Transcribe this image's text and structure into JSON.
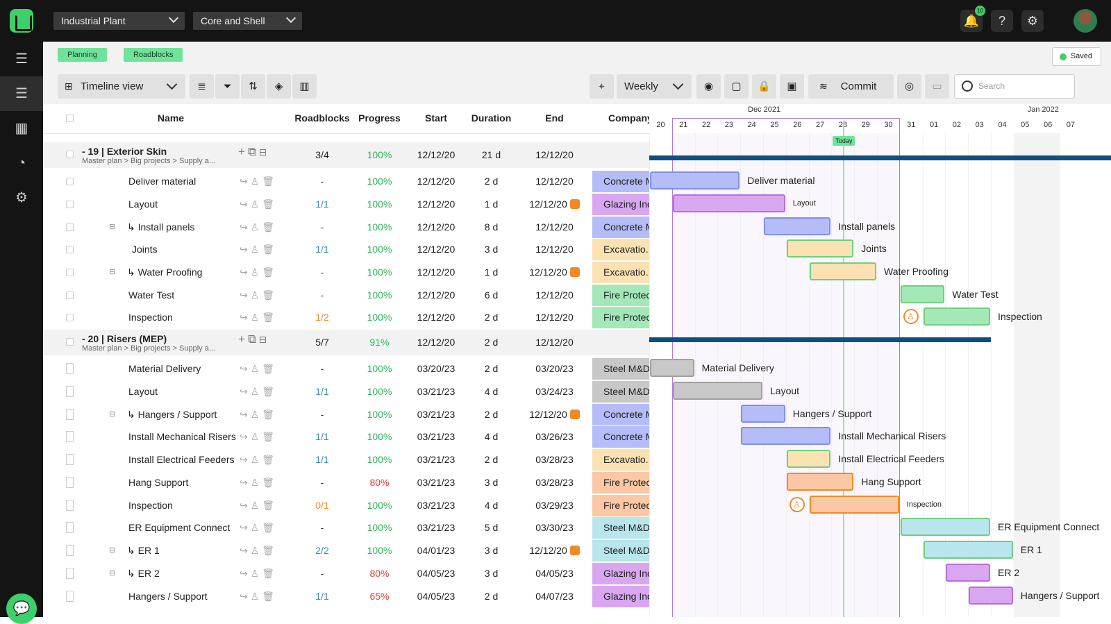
{
  "topbar": {
    "project": "Industrial Plant",
    "scope": "Core and Shell",
    "notif_count": "10"
  },
  "tabs": [
    "Planning",
    "Roadblocks"
  ],
  "saved": "Saved",
  "toolbar": {
    "view": "Timeline view",
    "scale": "Weekly",
    "commit": "Commit",
    "search_placeholder": "Search"
  },
  "columns": {
    "name": "Name",
    "roadblocks": "Roadblocks",
    "progress": "Progress",
    "start": "Start",
    "duration": "Duration",
    "end": "End",
    "company": "Company"
  },
  "colors": {
    "blue": "#b4bdf7",
    "purple": "#d9a7ef",
    "yellow": "#fbe2b2",
    "green": "#a4e8b8",
    "grey": "#c8c8c8",
    "orange": "#fbc7a5",
    "teal": "#b8e6ec",
    "accent": "#3ecf6a",
    "group_bar": "#0e4f7e"
  },
  "groups": [
    {
      "title": "- 19 | Exterior Skin",
      "path": "Master plan  >  Big projects  >  Supply a...",
      "roadblocks": "3/4",
      "progress": "100%",
      "start": "12/12/20",
      "duration": "21 d",
      "end": "12/12/20",
      "rows": [
        {
          "name": "Deliver material",
          "indent": 0,
          "rb": "-",
          "rbc": "#333",
          "prog": "100%",
          "pc": "#2eb85c",
          "start": "12/12/20",
          "dur": "2 d",
          "end": "12/12/20",
          "flag": false,
          "company": "Concrete M",
          "cc": "blue"
        },
        {
          "name": "Layout",
          "indent": 0,
          "rb": "1/1",
          "rbc": "#3a8fb7",
          "prog": "100%",
          "pc": "#2eb85c",
          "start": "12/12/20",
          "dur": "1 d",
          "end": "12/12/20",
          "flag": true,
          "company": "Glazing Inc",
          "cc": "purple"
        },
        {
          "name": "↳ Install panels",
          "indent": 1,
          "rb": "-",
          "rbc": "#333",
          "prog": "100%",
          "pc": "#2eb85c",
          "start": "12/12/20",
          "dur": "8 d",
          "end": "12/12/20",
          "flag": false,
          "company": "Concrete M",
          "cc": "blue"
        },
        {
          "name": "Joints",
          "indent": 2,
          "rb": "1/1",
          "rbc": "#3a8fb7",
          "prog": "100%",
          "pc": "#2eb85c",
          "start": "12/12/20",
          "dur": "3 d",
          "end": "12/12/20",
          "flag": false,
          "company": "Excavatio...",
          "cc": "yellow"
        },
        {
          "name": "↳ Water Proofing",
          "indent": 1,
          "rb": "-",
          "rbc": "#333",
          "prog": "100%",
          "pc": "#2eb85c",
          "start": "12/12/20",
          "dur": "1 d",
          "end": "12/12/20",
          "flag": true,
          "company": "Excavatio...",
          "cc": "yellow"
        },
        {
          "name": "Water Test",
          "indent": 0,
          "rb": "-",
          "rbc": "#333",
          "prog": "100%",
          "pc": "#2eb85c",
          "start": "12/12/20",
          "dur": "6 d",
          "end": "12/12/20",
          "flag": false,
          "company": "Fire Protect",
          "cc": "green"
        },
        {
          "name": "Inspection",
          "indent": 0,
          "rb": "1/2",
          "rbc": "#f08a24",
          "prog": "100%",
          "pc": "#2eb85c",
          "start": "12/12/20",
          "dur": "2 d",
          "end": "12/12/20",
          "flag": false,
          "company": "Fire Protect",
          "cc": "green"
        }
      ]
    },
    {
      "title": "- 20 | Risers (MEP)",
      "path": "Master plan  >  Big projects  >  Supply a...",
      "roadblocks": "5/7",
      "progress": "91%",
      "start": "12/12/20",
      "duration": "2 d",
      "end": "12/12/20",
      "rows": [
        {
          "name": "Material Delivery",
          "indent": 0,
          "rb": "-",
          "rbc": "#333",
          "prog": "100%",
          "pc": "#2eb85c",
          "start": "03/20/23",
          "dur": "2 d",
          "end": "03/20/23",
          "flag": false,
          "company": "Steel M&D",
          "cc": "grey"
        },
        {
          "name": "Layout",
          "indent": 0,
          "rb": "1/1",
          "rbc": "#3a8fb7",
          "prog": "100%",
          "pc": "#2eb85c",
          "start": "03/21/23",
          "dur": "4 d",
          "end": "03/24/23",
          "flag": false,
          "company": "Steel M&D",
          "cc": "grey"
        },
        {
          "name": "↳ Hangers / Support",
          "indent": 1,
          "rb": "-",
          "rbc": "#333",
          "prog": "100%",
          "pc": "#2eb85c",
          "start": "03/21/23",
          "dur": "2 d",
          "end": "12/12/20",
          "flag": true,
          "company": "Concrete M",
          "cc": "blue"
        },
        {
          "name": "Install Mechanical Risers",
          "indent": 0,
          "rb": "1/1",
          "rbc": "#3a8fb7",
          "prog": "100%",
          "pc": "#2eb85c",
          "start": "03/21/23",
          "dur": "4 d",
          "end": "03/26/23",
          "flag": false,
          "company": "Concrete M",
          "cc": "blue"
        },
        {
          "name": "Install Electrical Feeders",
          "indent": 0,
          "rb": "1/1",
          "rbc": "#3a8fb7",
          "prog": "100%",
          "pc": "#2eb85c",
          "start": "03/21/23",
          "dur": "2 d",
          "end": "03/28/23",
          "flag": false,
          "company": "Excavatio...",
          "cc": "yellow"
        },
        {
          "name": "Hang Support",
          "indent": 0,
          "rb": "-",
          "rbc": "#333",
          "prog": "80%",
          "pc": "#e8362f",
          "start": "03/21/23",
          "dur": "3 d",
          "end": "03/28/23",
          "flag": false,
          "company": "Fire Protect",
          "cc": "orange"
        },
        {
          "name": "Inspection",
          "indent": 0,
          "rb": "0/1",
          "rbc": "#f08a24",
          "prog": "100%",
          "pc": "#2eb85c",
          "start": "03/21/23",
          "dur": "4 d",
          "end": "03/29/23",
          "flag": false,
          "company": "Fire Protect",
          "cc": "orange"
        },
        {
          "name": "ER Equipment Connect",
          "indent": 0,
          "rb": "-",
          "rbc": "#333",
          "prog": "100%",
          "pc": "#2eb85c",
          "start": "03/21/23",
          "dur": "5 d",
          "end": "03/30/23",
          "flag": false,
          "company": "Steel M&D",
          "cc": "teal"
        },
        {
          "name": "↳ ER 1",
          "indent": 1,
          "rb": "2/2",
          "rbc": "#3a8fb7",
          "prog": "100%",
          "pc": "#2eb85c",
          "start": "04/01/23",
          "dur": "3 d",
          "end": "12/12/20",
          "flag": true,
          "company": "Steel M&D",
          "cc": "teal"
        },
        {
          "name": "↳ ER 2",
          "indent": 1,
          "rb": "-",
          "rbc": "#333",
          "prog": "80%",
          "pc": "#e8362f",
          "start": "04/05/23",
          "dur": "3 d",
          "end": "04/05/23",
          "flag": false,
          "company": "Glazing Inc",
          "cc": "purple"
        },
        {
          "name": "Hangers / Support",
          "indent": 0,
          "rb": "1/1",
          "rbc": "#3a8fb7",
          "prog": "65%",
          "pc": "#e8362f",
          "start": "04/05/23",
          "dur": "2 d",
          "end": "04/07/23",
          "flag": false,
          "company": "Glazing Inc",
          "cc": "purple"
        }
      ]
    }
  ],
  "gantt": {
    "months": [
      {
        "label": "Dec 2021",
        "day": "25"
      },
      {
        "label": "Jan 2022",
        "day": "06"
      }
    ],
    "days": [
      "20",
      "21",
      "22",
      "23",
      "24",
      "25",
      "26",
      "27",
      "28",
      "29",
      "30",
      "31",
      "01",
      "02",
      "03",
      "04",
      "05",
      "06",
      "07"
    ],
    "today_label": "Today",
    "today_day": "28",
    "bars": [
      {
        "label": "Deliver material",
        "start": "20",
        "span": 4,
        "color": "blue",
        "row": 1,
        "small": false
      },
      {
        "label": "Layout",
        "start": "21",
        "span": 5,
        "color": "purple",
        "row": 2,
        "small": true
      },
      {
        "label": "Install panels",
        "start": "25",
        "span": 3,
        "color": "blue",
        "row": 3,
        "small": false
      },
      {
        "label": "Joints",
        "start": "26",
        "span": 3,
        "color": "yellow",
        "row": 4,
        "small": false
      },
      {
        "label": "Water Proofing",
        "start": "27",
        "span": 3,
        "color": "yellow",
        "row": 5,
        "small": false
      },
      {
        "label": "Water Test",
        "start": "31",
        "span": 2,
        "color": "green",
        "row": 6,
        "small": false
      },
      {
        "label": "Inspection",
        "start": "01",
        "span": 3,
        "color": "green",
        "row": 7,
        "small": false,
        "marker": true
      },
      {
        "label": "Material Delivery",
        "start": "20",
        "span": 2,
        "color": "grey",
        "row": 9,
        "small": false
      },
      {
        "label": "Layout",
        "start": "21",
        "span": 4,
        "color": "grey",
        "row": 10,
        "small": false
      },
      {
        "label": "Hangers / Support",
        "start": "24",
        "span": 2,
        "color": "blue",
        "row": 11,
        "small": false
      },
      {
        "label": "Install Mechanical Risers",
        "start": "24",
        "span": 4,
        "color": "blue",
        "row": 12,
        "small": false
      },
      {
        "label": "Install Electrical Feeders",
        "start": "26",
        "span": 2,
        "color": "yellow",
        "row": 13,
        "small": false
      },
      {
        "label": "Hang Support",
        "start": "26",
        "span": 3,
        "color": "orange",
        "row": 14,
        "small": false
      },
      {
        "label": "Inspection",
        "start": "27",
        "span": 4,
        "color": "orange",
        "row": 15,
        "small": true,
        "marker": true
      },
      {
        "label": "ER Equipment Connect",
        "start": "31",
        "span": 4,
        "color": "teal",
        "row": 16,
        "small": false
      },
      {
        "label": "ER 1",
        "start": "01",
        "span": 4,
        "color": "teal",
        "row": 17,
        "small": false
      },
      {
        "label": "ER 2",
        "start": "02",
        "span": 2,
        "color": "purple",
        "row": 18,
        "small": false
      },
      {
        "label": "Hangers / Support",
        "start": "03",
        "span": 2,
        "color": "purple",
        "row": 19,
        "small": false
      }
    ]
  }
}
